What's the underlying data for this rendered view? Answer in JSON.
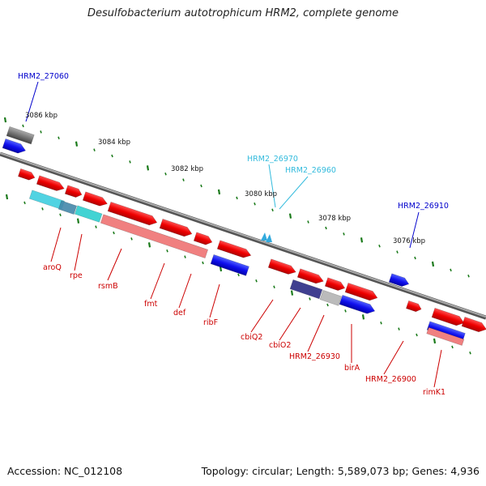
{
  "title": "Desulfobacterium autotrophicum HRM2, complete genome",
  "footer": {
    "accession": "Accession: NC_012108",
    "summary": "Topology: circular; Length: 5,589,073 bp; Genes: 4,936"
  },
  "colors": {
    "forward_gene": "#ff0000",
    "reverse_gene": "#1010ff",
    "pseudogene": "#777777",
    "rna": "#33ccdd",
    "backbone": "#888888",
    "tick": "#1a7a1a",
    "label_red": "#cc0000",
    "label_blue": "#0000cc",
    "label_cyan": "#33bbdd"
  },
  "kbp_ticks": [
    {
      "text": "3086 kbp"
    },
    {
      "text": "3084 kbp"
    },
    {
      "text": "3082 kbp"
    },
    {
      "text": "3080 kbp"
    },
    {
      "text": "3078 kbp"
    },
    {
      "text": "3076 kbp"
    }
  ],
  "gene_labels_below": [
    {
      "name": "aroQ"
    },
    {
      "name": "rpe"
    },
    {
      "name": "rsmB"
    },
    {
      "name": "fmt"
    },
    {
      "name": "def"
    },
    {
      "name": "ribF"
    },
    {
      "name": "cbiQ2"
    },
    {
      "name": "cbiO2"
    },
    {
      "name": "HRM2_26930"
    },
    {
      "name": "birA"
    },
    {
      "name": "HRM2_26900"
    },
    {
      "name": "rimK1"
    }
  ],
  "gene_labels_above": [
    {
      "name": "HRM2_27060"
    },
    {
      "name": "HRM2_26970"
    },
    {
      "name": "HRM2_26960"
    },
    {
      "name": "HRM2_26910"
    }
  ]
}
